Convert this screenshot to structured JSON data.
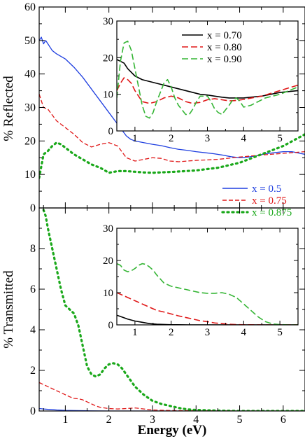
{
  "chart_data": [
    {
      "type": "line",
      "panel": "top",
      "ylabel": "% Reflected",
      "xlim": [
        0.4,
        6.5
      ],
      "ylim": [
        0,
        60
      ],
      "yticks": [
        0,
        10,
        20,
        30,
        40,
        50,
        60
      ],
      "legend_position": "bottom-right",
      "series": [
        {
          "name": "x = 0.5",
          "color": "#1f3fe0",
          "style": "solid",
          "x": [
            0.4,
            0.45,
            0.5,
            0.55,
            0.6,
            0.7,
            0.8,
            1.0,
            1.2,
            1.4,
            1.6,
            1.8,
            2.0,
            2.2,
            2.4,
            2.5,
            2.6,
            2.8,
            3.0,
            3.2,
            3.4,
            3.6,
            3.8,
            4.0,
            4.2,
            4.4,
            4.6,
            4.8,
            5.0,
            5.2,
            5.4,
            5.6,
            5.8,
            6.0,
            6.2,
            6.5
          ],
          "y": [
            50,
            51,
            49,
            50,
            49,
            47,
            46,
            44.5,
            42,
            39,
            35.5,
            32,
            28.5,
            25,
            21.5,
            20.5,
            20,
            19.5,
            19,
            18.6,
            18,
            17.5,
            17.2,
            16.8,
            16.5,
            16.2,
            15.8,
            15.3,
            15,
            15.2,
            15.6,
            16.2,
            16.5,
            16.8,
            16.8,
            16
          ]
        },
        {
          "name": "x = 0.75",
          "color": "#e01818",
          "style": "dashed",
          "x": [
            0.4,
            0.5,
            0.6,
            0.8,
            1.0,
            1.2,
            1.4,
            1.6,
            1.8,
            2.0,
            2.2,
            2.4,
            2.6,
            2.8,
            3.0,
            3.2,
            3.4,
            3.6,
            3.8,
            4.0,
            4.5,
            5.0,
            5.5,
            6.0,
            6.5
          ],
          "y": [
            34,
            30,
            29.5,
            26,
            24,
            22,
            19.5,
            18.2,
            19,
            19.5,
            18.5,
            15,
            14,
            14.5,
            15,
            14.8,
            14,
            13.8,
            14,
            14.2,
            14.5,
            15.2,
            15.8,
            16.3,
            16.8
          ]
        },
        {
          "name": "x = 0.875",
          "color": "#1aa81a",
          "style": "dotted",
          "x": [
            0.4,
            0.5,
            0.6,
            0.7,
            0.8,
            0.9,
            1.0,
            1.2,
            1.4,
            1.6,
            1.8,
            2.0,
            2.2,
            2.4,
            2.6,
            2.8,
            3.0,
            3.5,
            4.0,
            4.5,
            5.0,
            5.5,
            6.0,
            6.5
          ],
          "y": [
            9,
            16,
            17,
            18.5,
            19.5,
            19,
            18,
            16,
            14.5,
            13,
            12,
            10.5,
            11,
            11,
            10.8,
            10.6,
            10.5,
            10.8,
            11.2,
            12,
            13.5,
            16,
            18.5,
            22
          ]
        }
      ]
    },
    {
      "type": "line",
      "panel": "top-inset",
      "xlim": [
        0.5,
        5.5
      ],
      "ylim": [
        0,
        30
      ],
      "xticks": [
        1,
        2,
        3,
        4,
        5
      ],
      "yticks": [
        0,
        10,
        20,
        30
      ],
      "legend_position": "top-right",
      "series": [
        {
          "name": "x = 0.70",
          "color": "#000000",
          "style": "solid",
          "x": [
            0.5,
            0.6,
            0.7,
            0.8,
            1.0,
            1.2,
            1.4,
            1.6,
            1.8,
            2.0,
            2.2,
            2.4,
            2.6,
            2.8,
            3.0,
            3.2,
            3.4,
            3.6,
            3.8,
            4.0,
            4.2,
            4.5,
            5.0,
            5.5
          ],
          "y": [
            19.5,
            19,
            18.5,
            17,
            15,
            14,
            13.5,
            13,
            12.5,
            12,
            11.5,
            11,
            10.5,
            10,
            9.8,
            9.5,
            9.2,
            9,
            9,
            9,
            9.2,
            9.5,
            10.5,
            11
          ]
        },
        {
          "name": "x = 0.80",
          "color": "#e01818",
          "style": "dashed",
          "x": [
            0.5,
            0.6,
            0.7,
            0.8,
            0.9,
            1.0,
            1.2,
            1.4,
            1.6,
            1.8,
            2.0,
            2.2,
            2.4,
            2.6,
            2.8,
            3.0,
            3.2,
            3.4,
            3.6,
            3.8,
            4.0,
            4.5,
            5.0,
            5.5
          ],
          "y": [
            11,
            13,
            14.5,
            14,
            13,
            11,
            8,
            7.5,
            8,
            9,
            9.5,
            9,
            8,
            7.5,
            7.8,
            8.5,
            8.8,
            8.5,
            8.2,
            8.3,
            8.6,
            9.5,
            11,
            12.5
          ]
        },
        {
          "name": "x = 0.90",
          "color": "#35b535",
          "style": "dashed",
          "x": [
            0.5,
            0.6,
            0.7,
            0.8,
            0.9,
            1.0,
            1.1,
            1.2,
            1.3,
            1.4,
            1.5,
            1.6,
            1.8,
            1.9,
            2.0,
            2.1,
            2.2,
            2.4,
            2.5,
            2.6,
            2.7,
            2.8,
            3.0,
            3.1,
            3.2,
            3.3,
            3.4,
            3.6,
            3.7,
            3.8,
            3.9,
            4.0,
            4.2,
            4.4,
            4.6,
            4.8,
            5.0,
            5.5
          ],
          "y": [
            9,
            19,
            24,
            24.5,
            22,
            17,
            12,
            7,
            4,
            3.5,
            5,
            8,
            13,
            14,
            12,
            9,
            7,
            4.5,
            4.5,
            6,
            8,
            9.5,
            9.5,
            8,
            6,
            5,
            4.5,
            7,
            8.5,
            9,
            8,
            6.5,
            7,
            8,
            9,
            9.5,
            10,
            12
          ]
        }
      ]
    },
    {
      "type": "line",
      "panel": "bottom",
      "xlabel": "Energy (eV)",
      "ylabel": "% Transmitted",
      "xlim": [
        0.4,
        6.5
      ],
      "ylim": [
        0,
        10
      ],
      "xticks": [
        1,
        2,
        3,
        4,
        5,
        6
      ],
      "yticks": [
        0,
        2,
        4,
        6,
        8
      ],
      "series": [
        {
          "name": "x = 0.5",
          "color": "#1f3fe0",
          "style": "solid",
          "x": [
            0.4,
            0.5,
            0.6,
            0.8,
            1.0,
            1.5,
            2.0,
            3.0,
            4.0,
            5.0,
            6.0,
            6.5
          ],
          "y": [
            0.12,
            0.1,
            0.08,
            0.05,
            0.03,
            0.01,
            0,
            0,
            0,
            0,
            0,
            0
          ]
        },
        {
          "name": "x = 0.75",
          "color": "#e01818",
          "style": "dashed",
          "x": [
            0.4,
            0.5,
            0.6,
            0.7,
            0.8,
            0.9,
            1.0,
            1.1,
            1.2,
            1.3,
            1.4,
            1.5,
            1.6,
            1.7,
            1.8,
            2.0,
            2.2,
            2.4,
            2.6,
            2.8,
            3.0,
            3.5,
            4.0,
            5.0,
            6.5
          ],
          "y": [
            1.4,
            1.3,
            1.2,
            1.1,
            1.0,
            0.9,
            0.8,
            0.7,
            0.62,
            0.6,
            0.55,
            0.45,
            0.35,
            0.25,
            0.18,
            0.12,
            0.1,
            0.12,
            0.15,
            0.1,
            0.05,
            0.02,
            0.01,
            0,
            0
          ]
        },
        {
          "name": "x = 0.875",
          "color": "#1aa81a",
          "style": "dotted",
          "x": [
            0.5,
            0.55,
            0.6,
            0.7,
            0.8,
            0.9,
            1.0,
            1.1,
            1.2,
            1.3,
            1.4,
            1.5,
            1.6,
            1.7,
            1.8,
            1.9,
            2.0,
            2.1,
            2.2,
            2.3,
            2.4,
            2.6,
            2.8,
            3.0,
            3.2,
            3.4,
            3.6,
            3.8,
            4.0,
            4.5,
            5.0,
            6.5
          ],
          "y": [
            9.9,
            9.6,
            9,
            8,
            7,
            6,
            5.2,
            5,
            4.8,
            4.2,
            3.2,
            2.2,
            1.8,
            1.7,
            1.8,
            2.1,
            2.3,
            2.35,
            2.3,
            2.1,
            1.8,
            1.2,
            0.8,
            0.5,
            0.35,
            0.25,
            0.15,
            0.08,
            0.05,
            0.02,
            0,
            0
          ]
        }
      ]
    },
    {
      "type": "line",
      "panel": "bottom-inset",
      "xlim": [
        0.5,
        5.5
      ],
      "ylim": [
        0,
        30
      ],
      "xticks": [
        1,
        2,
        3,
        4,
        5
      ],
      "yticks": [
        0,
        10,
        20,
        30
      ],
      "series": [
        {
          "name": "x = 0.70",
          "color": "#000000",
          "style": "solid",
          "x": [
            0.5,
            0.6,
            0.7,
            0.8,
            1.0,
            1.2,
            1.4,
            1.6,
            2.0,
            2.5,
            3.0,
            5.5
          ],
          "y": [
            3,
            2.6,
            2.2,
            1.8,
            1.2,
            0.8,
            0.4,
            0.2,
            0.05,
            0,
            0,
            0
          ]
        },
        {
          "name": "x = 0.80",
          "color": "#e01818",
          "style": "dashed",
          "x": [
            0.5,
            0.6,
            0.8,
            1.0,
            1.2,
            1.4,
            1.6,
            1.8,
            2.0,
            2.2,
            2.4,
            2.6,
            2.8,
            3.0,
            3.2,
            3.4,
            3.6,
            3.8,
            4.0,
            4.5,
            5.5
          ],
          "y": [
            10,
            9.5,
            8.5,
            7.5,
            6.5,
            5.5,
            4.5,
            4,
            3.4,
            2.8,
            2.3,
            1.8,
            1.3,
            1,
            0.6,
            0.4,
            0.2,
            0.1,
            0.05,
            0,
            0
          ]
        },
        {
          "name": "x = 0.90",
          "color": "#35b535",
          "style": "dashed",
          "x": [
            0.5,
            0.6,
            0.7,
            0.8,
            0.9,
            1.0,
            1.1,
            1.2,
            1.3,
            1.4,
            1.5,
            1.6,
            1.8,
            2.0,
            2.2,
            2.4,
            2.6,
            2.8,
            3.0,
            3.2,
            3.4,
            3.6,
            3.8,
            4.0,
            4.2,
            4.4,
            4.6,
            4.8,
            5.0,
            5.2,
            5.5
          ],
          "y": [
            19,
            18.5,
            17,
            16.5,
            16.8,
            17.5,
            18.5,
            19,
            18.8,
            18,
            17,
            15.5,
            13,
            12,
            11.5,
            11,
            10.5,
            10,
            9.8,
            9.8,
            10,
            9.5,
            8.5,
            6.5,
            4.5,
            2.5,
            1,
            0.3,
            0.1,
            0,
            0
          ]
        }
      ]
    }
  ]
}
